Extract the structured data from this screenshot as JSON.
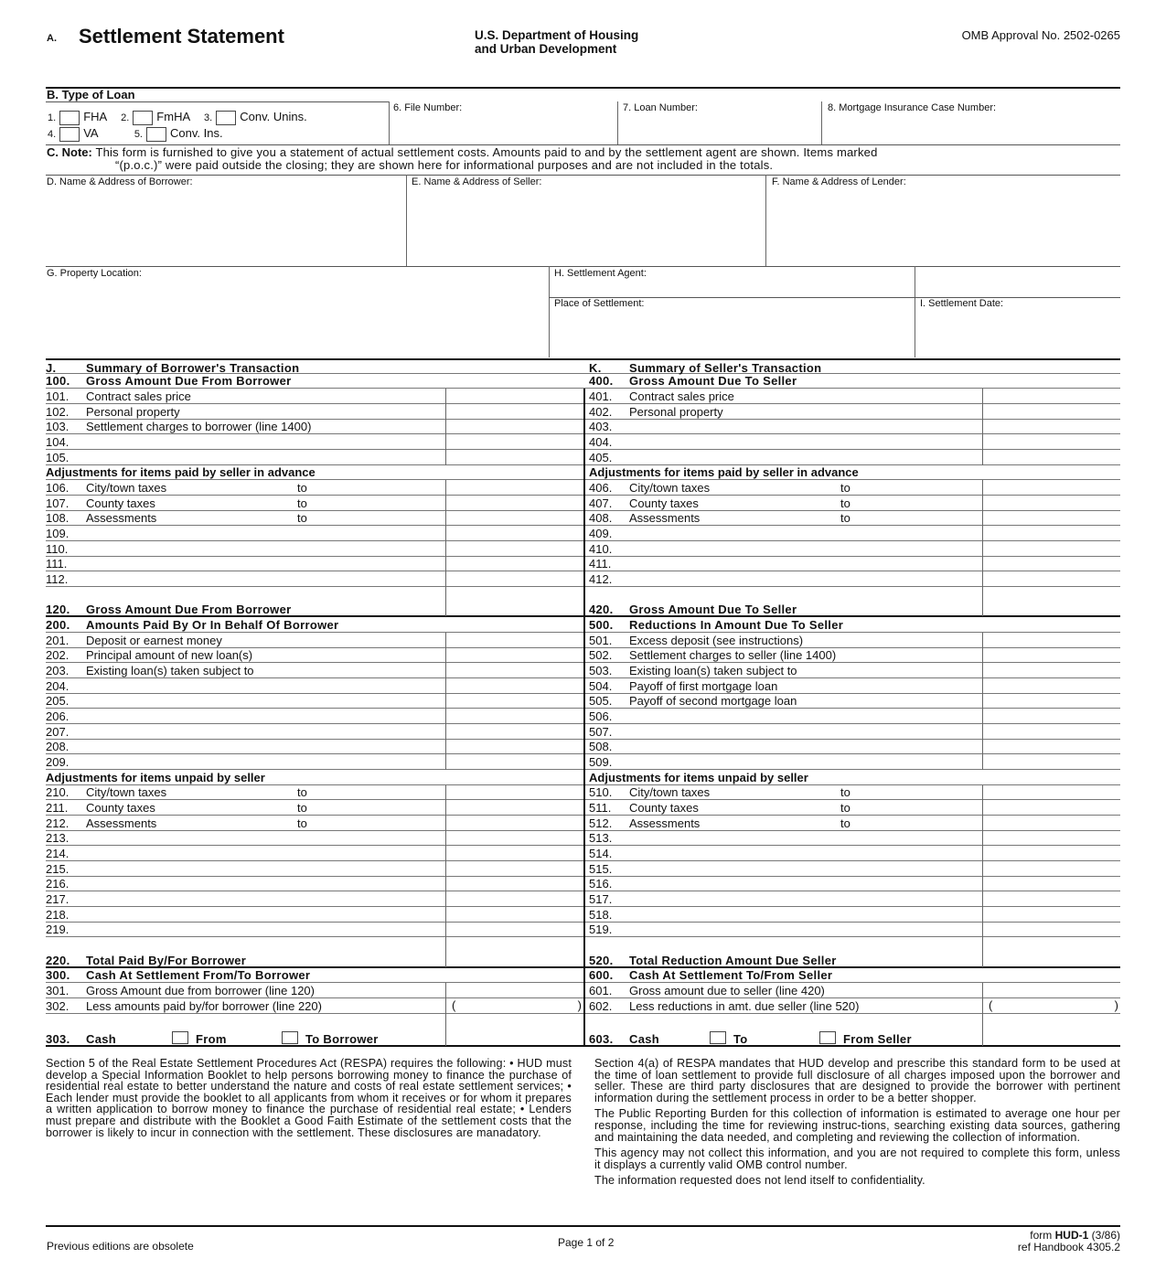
{
  "header": {
    "section_letter": "A.",
    "title": "Settlement Statement",
    "agency_line1": "U.S. Department of Housing",
    "agency_line2": "and Urban Development",
    "omb": "OMB Approval No. 2502-0265"
  },
  "type_of_loan": {
    "title": "B.  Type of Loan",
    "options": [
      {
        "num": "1.",
        "label": "FHA"
      },
      {
        "num": "2.",
        "label": "FmHA"
      },
      {
        "num": "3.",
        "label": "Conv. Unins."
      },
      {
        "num": "4.",
        "label": "VA"
      },
      {
        "num": "5.",
        "label": "Conv. Ins."
      }
    ],
    "file_number": "6.  File Number:",
    "loan_number": "7.  Loan Number:",
    "mic_number": "8.  Mortgage Insurance Case Number:"
  },
  "note": {
    "label": "C. Note:",
    "line1": "This form is furnished to give you a statement of actual settlement costs. Amounts paid to and by the settlement agent are shown. Items marked",
    "line2": "“(p.o.c.)” were paid outside the closing; they are shown here for informational purposes and are not included in the totals."
  },
  "parties": {
    "borrower": "D. Name & Address of Borrower:",
    "seller": "E. Name & Address of Seller:",
    "lender": "F. Name & Address of Lender:",
    "property": "G. Property Location:",
    "agent": "H. Settlement Agent:",
    "place": "Place of Settlement:",
    "date": "I.  Settlement Date:"
  },
  "borrower": [
    {
      "t": "hdr",
      "n": "J.",
      "l": "Summary of Borrower's Transaction",
      "noamt": true,
      "top": "thick"
    },
    {
      "t": "hdr",
      "n": "100.",
      "l": "Gross Amount Due From Borrower",
      "noamt": true
    },
    {
      "n": "101.",
      "l": "Contract sales price"
    },
    {
      "n": "102.",
      "l": "Personal property"
    },
    {
      "n": "103.",
      "l": "Settlement charges to borrower (line 1400)"
    },
    {
      "n": "104.",
      "l": ""
    },
    {
      "n": "105.",
      "l": ""
    },
    {
      "t": "sub",
      "n": "",
      "l": "Adjustments for items paid by seller in advance",
      "noamt": true
    },
    {
      "n": "106.",
      "l": "City/town taxes",
      "to": "to"
    },
    {
      "n": "107.",
      "l": "County taxes",
      "to": "to"
    },
    {
      "n": "108.",
      "l": "Assessments",
      "to": "to"
    },
    {
      "n": "109.",
      "l": ""
    },
    {
      "n": "110.",
      "l": ""
    },
    {
      "n": "111.",
      "l": ""
    },
    {
      "n": "112.",
      "l": ""
    },
    {
      "t": "hdr",
      "n": "120.",
      "l": "Gross Amount Due From Borrower",
      "h": 2,
      "thickbottom": true
    },
    {
      "t": "hdr",
      "n": "200.",
      "l": "Amounts Paid By Or In Behalf Of Borrower",
      "noamt": true
    },
    {
      "n": "201.",
      "l": "Deposit or earnest money"
    },
    {
      "n": "202.",
      "l": "Principal amount of new loan(s)"
    },
    {
      "n": "203.",
      "l": "Existing loan(s) taken subject to"
    },
    {
      "n": "204.",
      "l": ""
    },
    {
      "n": "205.",
      "l": ""
    },
    {
      "n": "206.",
      "l": ""
    },
    {
      "n": "207.",
      "l": ""
    },
    {
      "n": "208.",
      "l": ""
    },
    {
      "n": "209.",
      "l": ""
    },
    {
      "t": "sub",
      "n": "",
      "l": "Adjustments for items unpaid by seller",
      "noamt": true
    },
    {
      "n": "210.",
      "l": "City/town taxes",
      "to": "to"
    },
    {
      "n": "211.",
      "l": "County taxes",
      "to": "to"
    },
    {
      "n": "212.",
      "l": "Assessments",
      "to": "to"
    },
    {
      "n": "213.",
      "l": ""
    },
    {
      "n": "214.",
      "l": ""
    },
    {
      "n": "215.",
      "l": ""
    },
    {
      "n": "216.",
      "l": ""
    },
    {
      "n": "217.",
      "l": ""
    },
    {
      "n": "218.",
      "l": ""
    },
    {
      "n": "219.",
      "l": ""
    },
    {
      "t": "hdr",
      "n": "220.",
      "l": "Total Paid By/For Borrower",
      "h": 2,
      "thickbottom": true
    },
    {
      "t": "hdr",
      "n": "300.",
      "l": "Cash At Settlement From/To Borrower",
      "noamt": true
    },
    {
      "n": "301.",
      "l": "Gross Amount due from borrower (line 120)"
    },
    {
      "n": "302.",
      "l": "Less amounts paid by/for borrower (line 220)",
      "paren": true
    },
    {
      "t": "hdr",
      "n": "303.",
      "l": "Cash",
      "h": 2.2,
      "cash": [
        "From",
        "To Borrower"
      ],
      "thickbottom": true
    }
  ],
  "seller": [
    {
      "t": "hdr",
      "n": "K.",
      "l": "Summary of Seller's Transaction",
      "noamt": true,
      "top": "thick"
    },
    {
      "t": "hdr",
      "n": "400.",
      "l": "Gross Amount Due To Seller",
      "noamt": true
    },
    {
      "n": "401.",
      "l": "Contract sales price"
    },
    {
      "n": "402.",
      "l": "Personal property"
    },
    {
      "n": "403.",
      "l": ""
    },
    {
      "n": "404.",
      "l": ""
    },
    {
      "n": "405.",
      "l": ""
    },
    {
      "t": "sub",
      "n": "",
      "l": "Adjustments for items paid by seller in advance",
      "noamt": true
    },
    {
      "n": "406.",
      "l": "City/town taxes",
      "to": "to"
    },
    {
      "n": "407.",
      "l": "County taxes",
      "to": "to"
    },
    {
      "n": "408.",
      "l": "Assessments",
      "to": "to"
    },
    {
      "n": "409.",
      "l": ""
    },
    {
      "n": "410.",
      "l": ""
    },
    {
      "n": "411.",
      "l": ""
    },
    {
      "n": "412.",
      "l": ""
    },
    {
      "t": "hdr",
      "n": "420.",
      "l": "Gross Amount Due To Seller",
      "h": 2,
      "thickbottom": true
    },
    {
      "t": "hdr",
      "n": "500.",
      "l": "Reductions In Amount Due To Seller",
      "noamt": true
    },
    {
      "n": "501.",
      "l": "Excess deposit (see instructions)"
    },
    {
      "n": "502.",
      "l": "Settlement charges to seller (line 1400)"
    },
    {
      "n": "503.",
      "l": "Existing loan(s) taken subject to"
    },
    {
      "n": "504.",
      "l": "Payoff of first mortgage loan"
    },
    {
      "n": "505.",
      "l": "Payoff of second mortgage loan"
    },
    {
      "n": "506.",
      "l": ""
    },
    {
      "n": "507.",
      "l": ""
    },
    {
      "n": "508.",
      "l": ""
    },
    {
      "n": "509.",
      "l": ""
    },
    {
      "t": "sub",
      "n": "",
      "l": "Adjustments for items unpaid by seller",
      "noamt": true
    },
    {
      "n": "510.",
      "l": "City/town taxes",
      "to": "to"
    },
    {
      "n": "511.",
      "l": "County taxes",
      "to": "to"
    },
    {
      "n": "512.",
      "l": "Assessments",
      "to": "to"
    },
    {
      "n": "513.",
      "l": ""
    },
    {
      "n": "514.",
      "l": ""
    },
    {
      "n": "515.",
      "l": ""
    },
    {
      "n": "516.",
      "l": ""
    },
    {
      "n": "517.",
      "l": ""
    },
    {
      "n": "518.",
      "l": ""
    },
    {
      "n": "519.",
      "l": ""
    },
    {
      "t": "hdr",
      "n": "520.",
      "l": "Total Reduction Amount Due Seller",
      "h": 2,
      "thickbottom": true
    },
    {
      "t": "hdr",
      "n": "600.",
      "l": "Cash At Settlement To/From Seller",
      "noamt": true
    },
    {
      "n": "601.",
      "l": "Gross amount due to seller (line 420)"
    },
    {
      "n": "602.",
      "l": "Less reductions in amt. due seller (line 520)",
      "paren": true
    },
    {
      "t": "hdr",
      "n": "603.",
      "l": "Cash",
      "h": 2.2,
      "cash": [
        "To",
        "From Seller"
      ],
      "thickbottom": true
    }
  ],
  "paren_open": "(",
  "paren_close": ")",
  "disclosures": {
    "left": "Section 5 of the Real Estate Settlement Procedures Act (RESPA) requires the following:  • HUD must develop a Special Information Booklet to help persons borrowing money to finance the purchase of residential real estate to better understand the nature and costs of real estate settlement services; • Each lender must provide the booklet to all applicants from whom it receives or for whom it prepares a written application to borrow money to finance the purchase of residential real estate; • Lenders must prepare and distribute with the Booklet a Good Faith Estimate of the settlement costs that the borrower is likely to incur in connection with the settlement.  These disclosures are manadatory.",
    "right1": "Section 4(a) of RESPA mandates that HUD develop and prescribe this standard form to be used at the time of loan settlement to provide full disclosure of all charges imposed upon the borrower and seller.  These are third party disclosures that are designed to provide the  borrower with pertinent information during the settlement process in order to be a better shopper.",
    "right2": "The Public Reporting Burden for this collection of information is estimated to average one hour per response, including the time for reviewing instruc-tions, searching existing data sources, gathering and maintaining the data needed, and completing and reviewing the collection of information.",
    "right3": "This agency may not collect this information, and you are not required to complete this form, unless it displays a currently valid OMB control number.",
    "right4": "The information requested does not lend itself to confidentiality."
  },
  "footer": {
    "obsolete": "Previous editions are obsolete",
    "page": "Page 1 of 2",
    "form_prefix": "form ",
    "form_id": "HUD-1",
    "form_date": " (3/86)",
    "handbook": "ref Handbook 4305.2"
  }
}
